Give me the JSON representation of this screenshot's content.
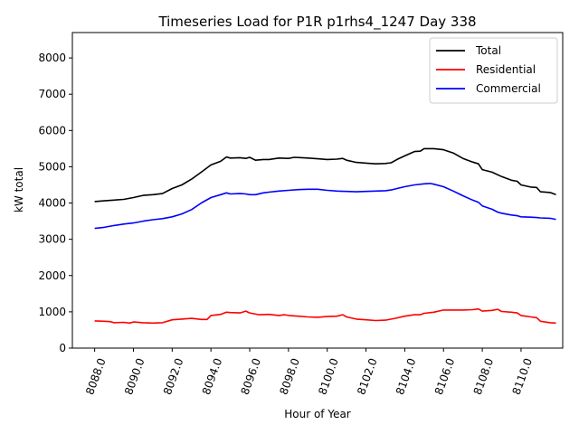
{
  "chart_data": {
    "type": "line",
    "title": "Timeseries Load for P1R p1rhs4_1247  Day 338",
    "xlabel": "Hour of Year",
    "ylabel": "kW total",
    "xlim": [
      8086.85,
      8112.15
    ],
    "ylim": [
      0,
      8700
    ],
    "x_ticks": [
      8088,
      8090,
      8092,
      8094,
      8096,
      8098,
      8100,
      8102,
      8104,
      8106,
      8108,
      8110
    ],
    "x_tick_labels": [
      "8088.0",
      "8090.0",
      "8092.0",
      "8094.0",
      "8096.0",
      "8098.0",
      "8100.0",
      "8102.0",
      "8104.0",
      "8106.0",
      "8108.0",
      "8110.0"
    ],
    "y_ticks": [
      0,
      1000,
      2000,
      3000,
      4000,
      5000,
      6000,
      7000,
      8000
    ],
    "y_tick_labels": [
      "0",
      "1000",
      "2000",
      "3000",
      "4000",
      "5000",
      "6000",
      "7000",
      "8000"
    ],
    "legend_position": "top-right",
    "series": [
      {
        "name": "Total",
        "color": "#000000",
        "points": [
          [
            8088.0,
            4040
          ],
          [
            8088.5,
            4060
          ],
          [
            8089.0,
            4080
          ],
          [
            8089.5,
            4100
          ],
          [
            8090.0,
            4150
          ],
          [
            8090.5,
            4210
          ],
          [
            8091.0,
            4230
          ],
          [
            8091.5,
            4260
          ],
          [
            8092.0,
            4400
          ],
          [
            8092.5,
            4500
          ],
          [
            8093.0,
            4660
          ],
          [
            8093.5,
            4850
          ],
          [
            8094.0,
            5050
          ],
          [
            8094.5,
            5150
          ],
          [
            8094.8,
            5270
          ],
          [
            8095.0,
            5240
          ],
          [
            8095.5,
            5250
          ],
          [
            8095.8,
            5230
          ],
          [
            8096.0,
            5260
          ],
          [
            8096.3,
            5180
          ],
          [
            8096.7,
            5200
          ],
          [
            8097.0,
            5200
          ],
          [
            8097.5,
            5240
          ],
          [
            8098.0,
            5230
          ],
          [
            8098.3,
            5260
          ],
          [
            8098.7,
            5250
          ],
          [
            8099.0,
            5240
          ],
          [
            8099.5,
            5220
          ],
          [
            8100.0,
            5200
          ],
          [
            8100.5,
            5210
          ],
          [
            8100.8,
            5230
          ],
          [
            8101.0,
            5180
          ],
          [
            8101.5,
            5120
          ],
          [
            8102.0,
            5100
          ],
          [
            8102.5,
            5080
          ],
          [
            8103.0,
            5090
          ],
          [
            8103.3,
            5110
          ],
          [
            8103.6,
            5200
          ],
          [
            8104.0,
            5300
          ],
          [
            8104.5,
            5420
          ],
          [
            8104.8,
            5430
          ],
          [
            8105.0,
            5500
          ],
          [
            8105.5,
            5500
          ],
          [
            8106.0,
            5470
          ],
          [
            8106.5,
            5380
          ],
          [
            8107.0,
            5230
          ],
          [
            8107.5,
            5130
          ],
          [
            8107.8,
            5080
          ],
          [
            8108.0,
            4920
          ],
          [
            8108.5,
            4850
          ],
          [
            8109.0,
            4730
          ],
          [
            8109.5,
            4630
          ],
          [
            8109.8,
            4600
          ],
          [
            8110.0,
            4500
          ],
          [
            8110.5,
            4440
          ],
          [
            8110.8,
            4430
          ],
          [
            8111.0,
            4310
          ],
          [
            8111.5,
            4290
          ],
          [
            8111.8,
            4230
          ]
        ]
      },
      {
        "name": "Residential",
        "color": "#ff0000",
        "points": [
          [
            8088.0,
            750
          ],
          [
            8088.5,
            740
          ],
          [
            8088.8,
            730
          ],
          [
            8089.0,
            700
          ],
          [
            8089.5,
            710
          ],
          [
            8089.8,
            690
          ],
          [
            8090.0,
            720
          ],
          [
            8090.5,
            700
          ],
          [
            8091.0,
            690
          ],
          [
            8091.5,
            700
          ],
          [
            8092.0,
            780
          ],
          [
            8092.5,
            800
          ],
          [
            8093.0,
            820
          ],
          [
            8093.5,
            790
          ],
          [
            8093.8,
            790
          ],
          [
            8094.0,
            900
          ],
          [
            8094.5,
            930
          ],
          [
            8094.8,
            990
          ],
          [
            8095.0,
            980
          ],
          [
            8095.5,
            970
          ],
          [
            8095.8,
            1020
          ],
          [
            8096.0,
            970
          ],
          [
            8096.5,
            920
          ],
          [
            8097.0,
            930
          ],
          [
            8097.5,
            900
          ],
          [
            8097.8,
            920
          ],
          [
            8098.0,
            900
          ],
          [
            8098.5,
            880
          ],
          [
            8099.0,
            860
          ],
          [
            8099.5,
            850
          ],
          [
            8100.0,
            870
          ],
          [
            8100.5,
            880
          ],
          [
            8100.8,
            920
          ],
          [
            8101.0,
            860
          ],
          [
            8101.5,
            800
          ],
          [
            8102.0,
            780
          ],
          [
            8102.5,
            760
          ],
          [
            8103.0,
            770
          ],
          [
            8103.5,
            820
          ],
          [
            8104.0,
            880
          ],
          [
            8104.5,
            920
          ],
          [
            8104.8,
            920
          ],
          [
            8105.0,
            960
          ],
          [
            8105.5,
            990
          ],
          [
            8106.0,
            1050
          ],
          [
            8106.5,
            1050
          ],
          [
            8107.0,
            1050
          ],
          [
            8107.5,
            1060
          ],
          [
            8107.8,
            1080
          ],
          [
            8108.0,
            1020
          ],
          [
            8108.5,
            1040
          ],
          [
            8108.8,
            1070
          ],
          [
            8109.0,
            1010
          ],
          [
            8109.5,
            990
          ],
          [
            8109.8,
            970
          ],
          [
            8110.0,
            900
          ],
          [
            8110.5,
            860
          ],
          [
            8110.8,
            840
          ],
          [
            8111.0,
            740
          ],
          [
            8111.5,
            700
          ],
          [
            8111.8,
            690
          ]
        ]
      },
      {
        "name": "Commercial",
        "color": "#0000ff",
        "points": [
          [
            8088.0,
            3300
          ],
          [
            8088.5,
            3330
          ],
          [
            8089.0,
            3380
          ],
          [
            8089.5,
            3420
          ],
          [
            8090.0,
            3450
          ],
          [
            8090.5,
            3500
          ],
          [
            8091.0,
            3540
          ],
          [
            8091.5,
            3570
          ],
          [
            8092.0,
            3620
          ],
          [
            8092.5,
            3700
          ],
          [
            8093.0,
            3820
          ],
          [
            8093.5,
            4000
          ],
          [
            8094.0,
            4150
          ],
          [
            8094.5,
            4230
          ],
          [
            8094.8,
            4280
          ],
          [
            8095.0,
            4250
          ],
          [
            8095.5,
            4260
          ],
          [
            8095.8,
            4250
          ],
          [
            8096.0,
            4230
          ],
          [
            8096.3,
            4230
          ],
          [
            8096.7,
            4280
          ],
          [
            8097.0,
            4300
          ],
          [
            8097.5,
            4330
          ],
          [
            8098.0,
            4350
          ],
          [
            8098.5,
            4370
          ],
          [
            8099.0,
            4380
          ],
          [
            8099.5,
            4380
          ],
          [
            8100.0,
            4350
          ],
          [
            8100.5,
            4330
          ],
          [
            8101.0,
            4320
          ],
          [
            8101.5,
            4310
          ],
          [
            8102.0,
            4320
          ],
          [
            8102.5,
            4330
          ],
          [
            8103.0,
            4340
          ],
          [
            8103.3,
            4360
          ],
          [
            8103.6,
            4400
          ],
          [
            8104.0,
            4450
          ],
          [
            8104.5,
            4500
          ],
          [
            8105.0,
            4530
          ],
          [
            8105.3,
            4540
          ],
          [
            8105.5,
            4520
          ],
          [
            8106.0,
            4450
          ],
          [
            8106.5,
            4330
          ],
          [
            8107.0,
            4200
          ],
          [
            8107.5,
            4080
          ],
          [
            8107.8,
            4020
          ],
          [
            8108.0,
            3920
          ],
          [
            8108.5,
            3830
          ],
          [
            8108.8,
            3750
          ],
          [
            8109.0,
            3720
          ],
          [
            8109.5,
            3670
          ],
          [
            8109.8,
            3650
          ],
          [
            8110.0,
            3620
          ],
          [
            8110.5,
            3610
          ],
          [
            8110.8,
            3600
          ],
          [
            8111.0,
            3590
          ],
          [
            8111.5,
            3580
          ],
          [
            8111.8,
            3550
          ]
        ]
      }
    ]
  }
}
